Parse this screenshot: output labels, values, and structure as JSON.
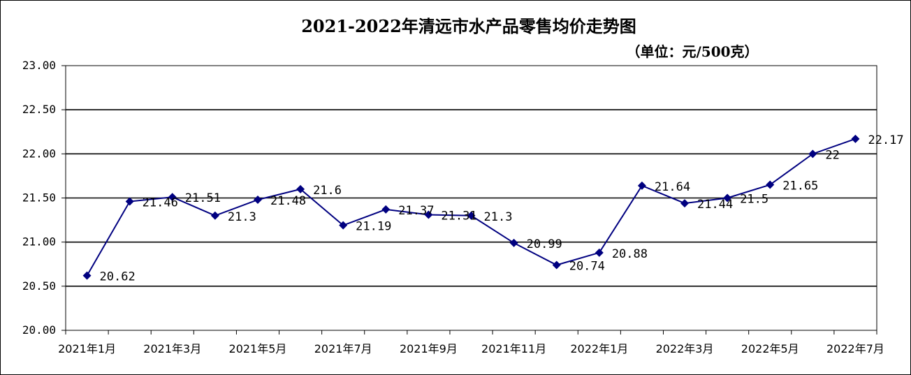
{
  "chart_data": {
    "type": "line",
    "title": "2021-2022年清远市水产品零售均价走势图",
    "unit": "（单位：元/500克）",
    "ylim": [
      20.0,
      23.0
    ],
    "yticks": [
      "20.00",
      "20.50",
      "21.00",
      "21.50",
      "22.00",
      "22.50",
      "23.00"
    ],
    "x_tick_labels": [
      "2021年1月",
      "2021年3月",
      "2021年5月",
      "2021年7月",
      "2021年9月",
      "2021年11月",
      "2022年1月",
      "2022年3月",
      "2022年5月",
      "2022年7月"
    ],
    "grid": true,
    "legend": "none",
    "line_color": "#000080",
    "series": [
      {
        "values": [
          20.62,
          21.46,
          21.51,
          21.3,
          21.48,
          21.6,
          21.19,
          21.37,
          21.31,
          21.3,
          20.99,
          20.74,
          20.88,
          21.64,
          21.44,
          21.5,
          21.65,
          22,
          22.17
        ],
        "labels": [
          "20.62",
          "21.46",
          "21.51",
          "21.3",
          "21.48",
          "21.6",
          "21.19",
          "21.37",
          "21.31",
          "21.3",
          "20.99",
          "20.74",
          "20.88",
          "21.64",
          "21.44",
          "21.5",
          "21.65",
          "22",
          "22.17"
        ]
      }
    ]
  }
}
